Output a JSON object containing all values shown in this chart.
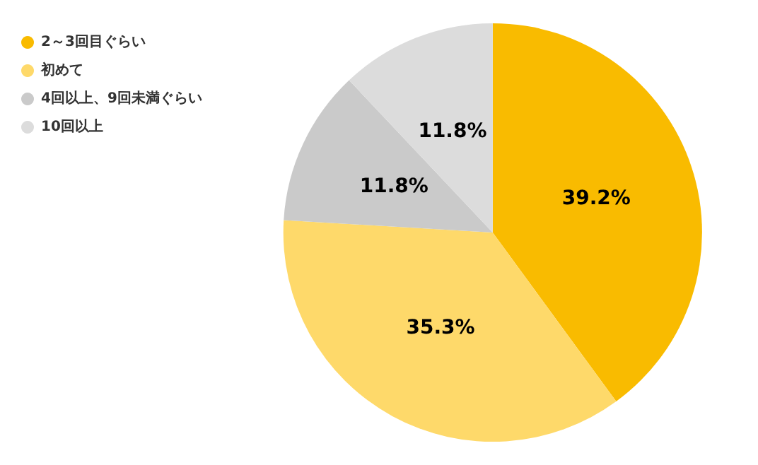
{
  "chart_data": {
    "type": "pie",
    "categories": [
      "2～3回目ぐらい",
      "初めて",
      "4回以上、9回未満ぐらい",
      "10回以上"
    ],
    "values": [
      39.2,
      35.3,
      11.8,
      11.8
    ],
    "colors": [
      "#f9bb00",
      "#fed96a",
      "#cacaca",
      "#dcdcdc"
    ],
    "value_labels": [
      "39.2%",
      "35.3%",
      "11.8%",
      "11.8%"
    ],
    "legend": "top left"
  }
}
